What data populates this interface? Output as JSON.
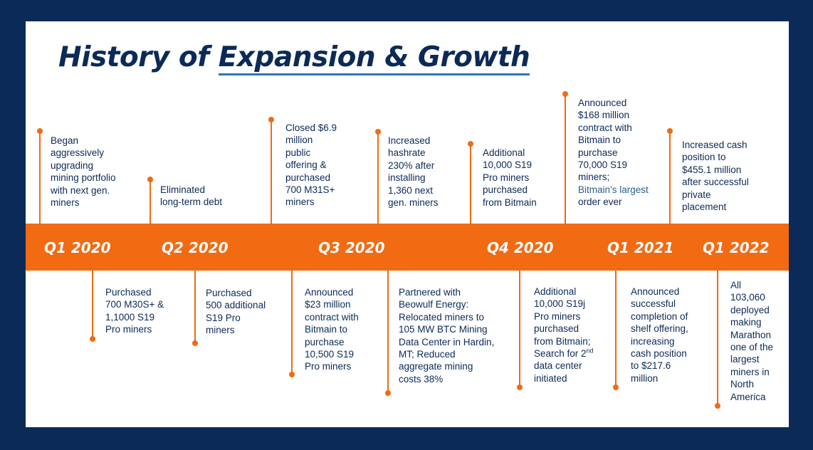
{
  "title": {
    "prefix": "History of ",
    "underlined": "Expansion & Growth"
  },
  "quarters": [
    "Q1 2020",
    "Q2 2020",
    "Q3 2020",
    "Q4 2020",
    "Q1 2021",
    "Q1 2022"
  ],
  "events_above": [
    {
      "lines": [
        "Began",
        "aggressively",
        "upgrading",
        "mining portfolio",
        "with next gen.",
        "miners"
      ]
    },
    {
      "lines": [
        "Eliminated",
        "long-term debt"
      ]
    },
    {
      "lines": [
        "Closed $6.9",
        "million",
        "public",
        "offering &",
        "purchased",
        "700 M31S+",
        "miners"
      ]
    },
    {
      "lines": [
        "Increased",
        "hashrate",
        "230% after",
        "installing",
        "1,360 next",
        "gen. miners"
      ]
    },
    {
      "lines": [
        "Additional",
        "10,000 S19",
        "Pro miners",
        "purchased",
        "from Bitmain"
      ]
    },
    {
      "lines": [
        "Announced",
        "$168 million",
        "contract with",
        "Bitmain to",
        "purchase",
        "70,000 S19",
        "miners;"
      ],
      "accent": "Bitmain’s largest",
      "tail": "order ever"
    },
    {
      "lines": [
        "Increased cash",
        "position to",
        "$455.1 million",
        "after successful",
        "private",
        "placement"
      ]
    }
  ],
  "events_below": [
    {
      "lines": [
        "Purchased",
        "700 M30S+ &",
        "1,1000 S19",
        "Pro miners"
      ]
    },
    {
      "lines": [
        "Purchased",
        "500 additional",
        "S19 Pro",
        "miners"
      ]
    },
    {
      "lines": [
        "Announced",
        "$23 million",
        "contract with",
        "Bitmain to",
        "purchase",
        "10,500 S19",
        "Pro miners"
      ]
    },
    {
      "lines": [
        "Partnered with",
        "Beowulf Energy:",
        "Relocated miners to",
        "105 MW BTC Mining",
        "Data Center in Hardin,",
        "MT; Reduced",
        "aggregate mining",
        "costs 38%"
      ]
    },
    {
      "lines": [
        "Additional",
        "10,000 S19j",
        "Pro miners",
        "purchased",
        "from Bitmain;",
        "Search for 2",
        "data center",
        "initiated"
      ],
      "sup": "nd"
    },
    {
      "lines": [
        "Announced",
        "successful",
        "completion of",
        "shelf offering,",
        "increasing",
        "cash position",
        "to $217.6",
        "million"
      ]
    },
    {
      "lines": [
        "All",
        "103,060",
        "deployed",
        "making",
        "Marathon",
        "one of the",
        "largest",
        "miners in",
        "North",
        "America"
      ]
    }
  ],
  "colors": {
    "navy": "#0b2a57",
    "orange": "#f26a12",
    "underline": "#2f72c4",
    "background": "#ffffff"
  }
}
